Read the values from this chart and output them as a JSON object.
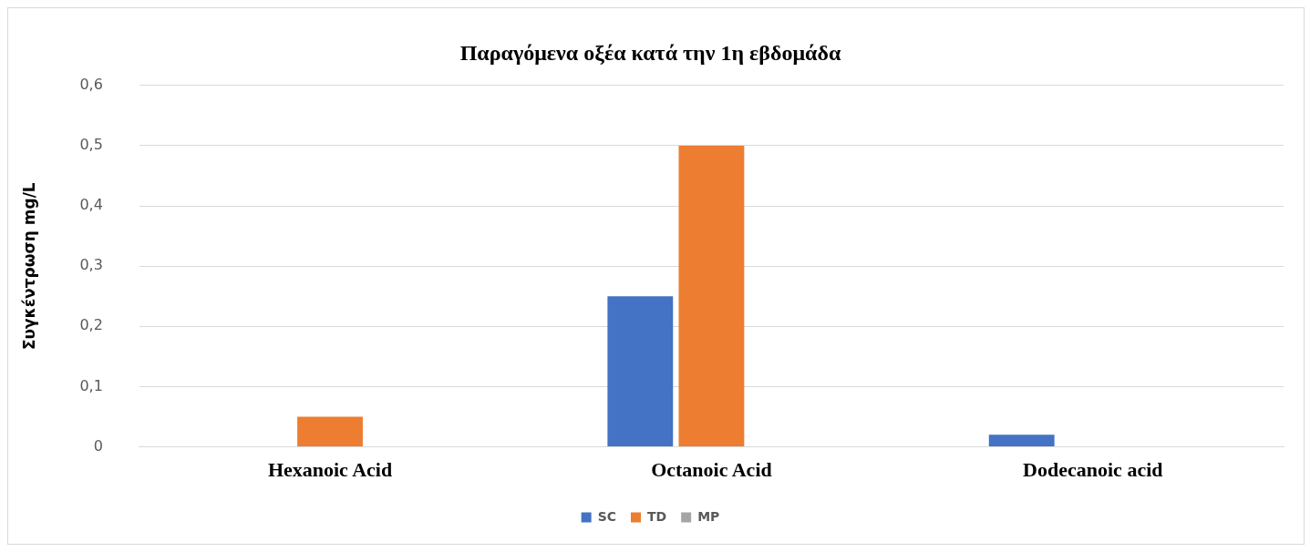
{
  "chart_data": {
    "type": "bar",
    "title": "Παραγόμενα οξέα κατά την 1η εβδομάδα",
    "ylabel": "Συγκέντρωση mg/L",
    "categories": [
      "Hexanoic Acid",
      "Octanoic Acid",
      "Dodecanoic acid"
    ],
    "series": [
      {
        "name": "SC",
        "color": "#4472c4",
        "values": [
          0,
          0.25,
          0.02
        ]
      },
      {
        "name": "TD",
        "color": "#ed7d31",
        "values": [
          0.05,
          0.5,
          0
        ]
      },
      {
        "name": "MP",
        "color": "#a5a5a5",
        "values": [
          0,
          0,
          0
        ]
      }
    ],
    "ylim": [
      0,
      0.6
    ],
    "yticks": [
      {
        "value": 0,
        "label": "0"
      },
      {
        "value": 0.1,
        "label": "0,1"
      },
      {
        "value": 0.2,
        "label": "0,2"
      },
      {
        "value": 0.3,
        "label": "0,3"
      },
      {
        "value": 0.4,
        "label": "0,4"
      },
      {
        "value": 0.5,
        "label": "0,5"
      },
      {
        "value": 0.6,
        "label": "0,6"
      }
    ],
    "grid": "y",
    "legend": "bottom"
  }
}
